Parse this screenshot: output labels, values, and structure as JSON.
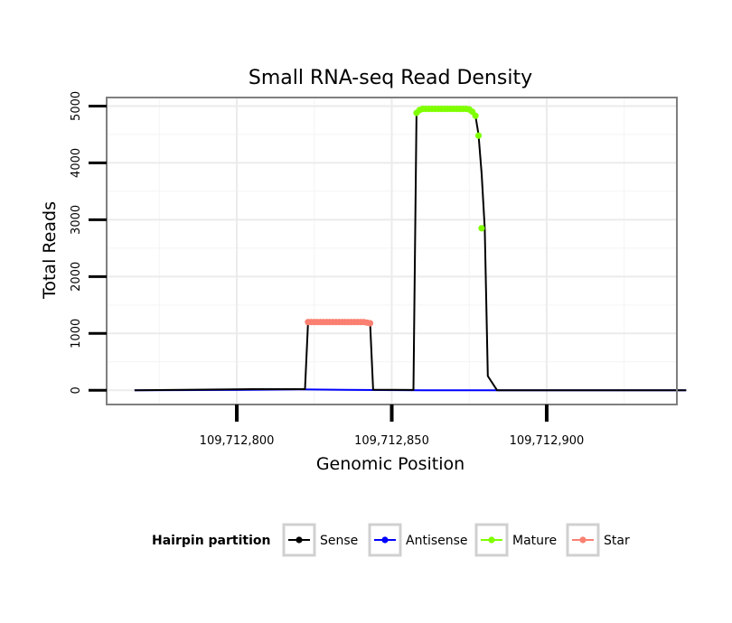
{
  "chart_data": {
    "type": "line",
    "title": "Small RNA-seq Read Density",
    "xlabel": "Genomic Position",
    "ylabel": "Total Reads",
    "xlim": [
      109712758,
      109712942
    ],
    "ylim": [
      -250,
      5150
    ],
    "x_ticks": [
      109712800,
      109712850,
      109712900
    ],
    "x_tick_labels": [
      "109,712,800",
      "109,712,850",
      "109,712,900"
    ],
    "y_ticks": [
      0,
      1000,
      2000,
      3000,
      4000,
      5000
    ],
    "y_tick_labels": [
      "0",
      "1000",
      "2000",
      "3000",
      "4000",
      "5000"
    ],
    "grid": true,
    "legend": {
      "title": "Hairpin partition",
      "position": "bottom",
      "entries": [
        {
          "name": "Sense",
          "color": "#000000"
        },
        {
          "name": "Antisense",
          "color": "#0000ff"
        },
        {
          "name": "Mature",
          "color": "#7fff00"
        },
        {
          "name": "Star",
          "color": "#fa8072"
        }
      ]
    },
    "series": [
      {
        "name": "Sense",
        "color": "#000000",
        "x": [
          109712767,
          109712805,
          109712822,
          109712823,
          109712843,
          109712844,
          109712857,
          109712858,
          109712859,
          109712875,
          109712877,
          109712878,
          109712879,
          109712880,
          109712881,
          109712884,
          109712945
        ],
        "y": [
          0,
          20,
          20,
          1200,
          1200,
          10,
          5,
          4880,
          4950,
          4950,
          4830,
          4500,
          3800,
          2850,
          250,
          0,
          0
        ],
        "markers": false
      },
      {
        "name": "Antisense",
        "color": "#0000ff",
        "x": [
          109712767,
          109712800,
          109712820,
          109712840,
          109712860,
          109712945
        ],
        "y": [
          0,
          5,
          15,
          5,
          0,
          0
        ],
        "markers": false
      },
      {
        "name": "Mature",
        "color": "#7fff00",
        "x": [
          109712858,
          109712859,
          109712860,
          109712861,
          109712862,
          109712863,
          109712864,
          109712865,
          109712866,
          109712867,
          109712868,
          109712869,
          109712870,
          109712871,
          109712872,
          109712873,
          109712874,
          109712875,
          109712876,
          109712877,
          109712878
        ],
        "y": [
          4880,
          4930,
          4950,
          4950,
          4950,
          4950,
          4950,
          4950,
          4950,
          4950,
          4950,
          4950,
          4950,
          4950,
          4950,
          4950,
          4950,
          4940,
          4900,
          4830,
          4480
        ],
        "extra_points": {
          "x": [
            109712879
          ],
          "y": [
            2850
          ]
        },
        "markers": true
      },
      {
        "name": "Star",
        "color": "#fa8072",
        "x": [
          109712823,
          109712824,
          109712825,
          109712826,
          109712827,
          109712828,
          109712829,
          109712830,
          109712831,
          109712832,
          109712833,
          109712834,
          109712835,
          109712836,
          109712837,
          109712838,
          109712839,
          109712840,
          109712841,
          109712842,
          109712843
        ],
        "y": [
          1200,
          1200,
          1200,
          1200,
          1200,
          1200,
          1200,
          1200,
          1200,
          1200,
          1200,
          1200,
          1200,
          1200,
          1200,
          1200,
          1200,
          1200,
          1200,
          1190,
          1180
        ],
        "markers": true
      }
    ]
  }
}
